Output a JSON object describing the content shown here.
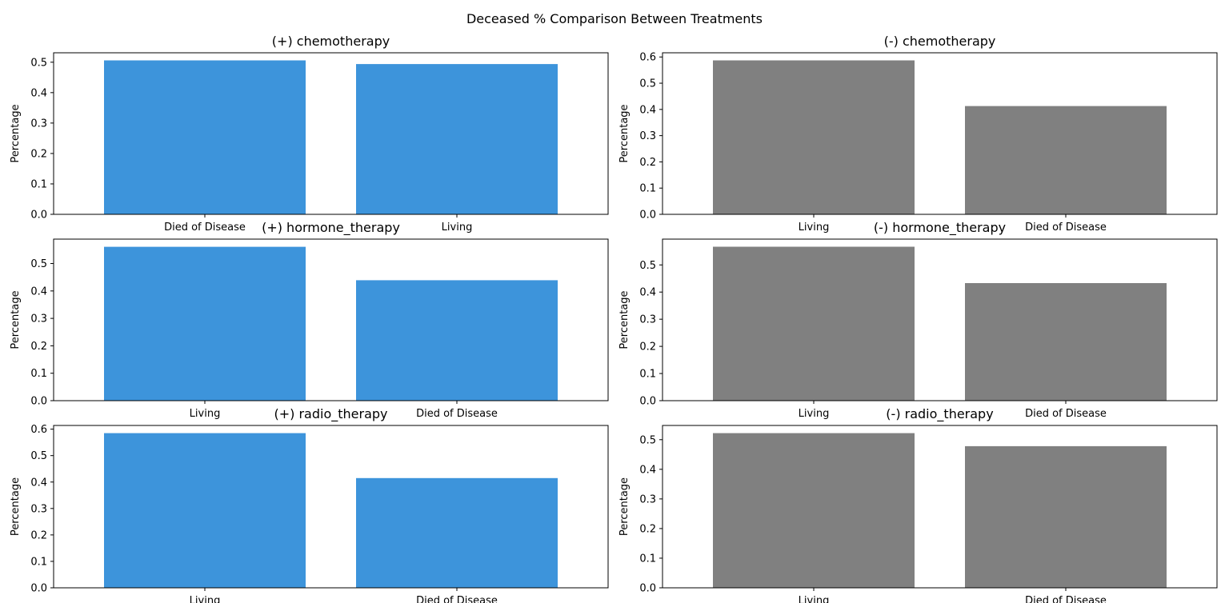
{
  "suptitle": "Deceased % Comparison Between Treatments",
  "colors": {
    "positive": "#3d94db",
    "negative": "#808080"
  },
  "chart_data": [
    {
      "type": "bar",
      "title": "(+) chemotherapy",
      "ylabel": "Percentage",
      "xlabel": "",
      "categories": [
        "Died of Disease",
        "Living"
      ],
      "values": [
        0.506,
        0.494
      ],
      "ylim": [
        0,
        0.531
      ],
      "yticks": [
        "0.0",
        "0.1",
        "0.2",
        "0.3",
        "0.4",
        "0.5"
      ],
      "color": "#3d94db"
    },
    {
      "type": "bar",
      "title": "(-) chemotherapy",
      "ylabel": "Percentage",
      "xlabel": "",
      "categories": [
        "Living",
        "Died of Disease"
      ],
      "values": [
        0.587,
        0.413
      ],
      "ylim": [
        0,
        0.616
      ],
      "yticks": [
        "0.0",
        "0.1",
        "0.2",
        "0.3",
        "0.4",
        "0.5",
        "0.6"
      ],
      "color": "#808080"
    },
    {
      "type": "bar",
      "title": "(+) hormone_therapy",
      "ylabel": "Percentage",
      "xlabel": "",
      "categories": [
        "Living",
        "Died of Disease"
      ],
      "values": [
        0.561,
        0.439
      ],
      "ylim": [
        0,
        0.589
      ],
      "yticks": [
        "0.0",
        "0.1",
        "0.2",
        "0.3",
        "0.4",
        "0.5"
      ],
      "color": "#3d94db"
    },
    {
      "type": "bar",
      "title": "(-) hormone_therapy",
      "ylabel": "Percentage",
      "xlabel": "",
      "categories": [
        "Living",
        "Died of Disease"
      ],
      "values": [
        0.567,
        0.433
      ],
      "ylim": [
        0,
        0.595
      ],
      "yticks": [
        "0.0",
        "0.1",
        "0.2",
        "0.3",
        "0.4",
        "0.5"
      ],
      "color": "#808080"
    },
    {
      "type": "bar",
      "title": "(+) radio_therapy",
      "ylabel": "Percentage",
      "xlabel": "",
      "categories": [
        "Living",
        "Died of Disease"
      ],
      "values": [
        0.585,
        0.415
      ],
      "ylim": [
        0,
        0.614
      ],
      "yticks": [
        "0.0",
        "0.1",
        "0.2",
        "0.3",
        "0.4",
        "0.5",
        "0.6"
      ],
      "color": "#3d94db"
    },
    {
      "type": "bar",
      "title": "(-) radio_therapy",
      "ylabel": "Percentage",
      "xlabel": "",
      "categories": [
        "Living",
        "Died of Disease"
      ],
      "values": [
        0.522,
        0.478
      ],
      "ylim": [
        0,
        0.548
      ],
      "yticks": [
        "0.0",
        "0.1",
        "0.2",
        "0.3",
        "0.4",
        "0.5"
      ],
      "color": "#808080"
    }
  ]
}
